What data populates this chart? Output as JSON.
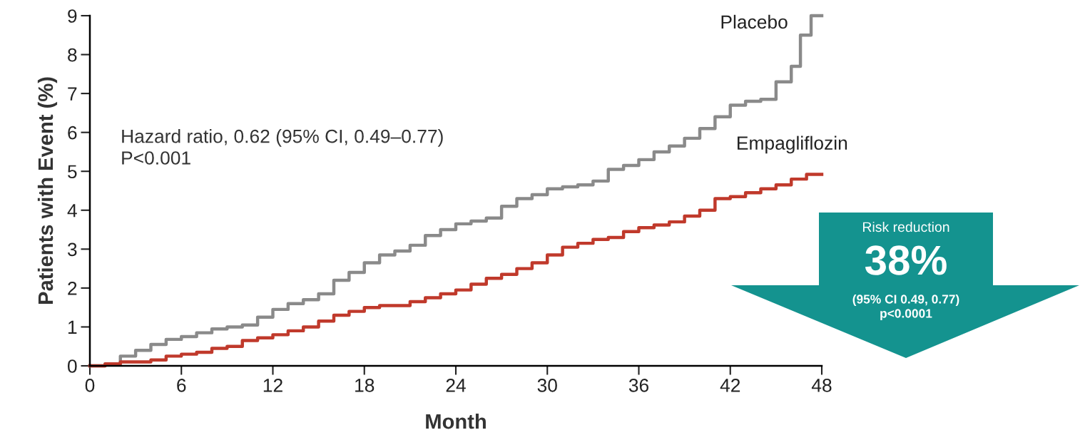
{
  "chart_data": {
    "type": "step",
    "xlabel": "Month",
    "ylabel": "Patients with Event (%)",
    "xlim": [
      0,
      48
    ],
    "ylim": [
      0,
      9
    ],
    "xticks": [
      0,
      6,
      12,
      18,
      24,
      30,
      36,
      42,
      48
    ],
    "yticks": [
      0,
      1,
      2,
      3,
      4,
      5,
      6,
      7,
      8,
      9
    ],
    "grid": false,
    "legend": false,
    "marker": "none",
    "line_style": "solid",
    "series": [
      {
        "name": "Placebo",
        "color": "#8a8a8a",
        "x": [
          0,
          1,
          2,
          3,
          4,
          5,
          6,
          7,
          8,
          9,
          10,
          11,
          12,
          13,
          14,
          15,
          16,
          17,
          18,
          19,
          20,
          21,
          22,
          23,
          24,
          25,
          26,
          27,
          28,
          29,
          30,
          31,
          32,
          33,
          34,
          35,
          36,
          37,
          38,
          39,
          40,
          41,
          42,
          43,
          44,
          45,
          46,
          46.6,
          47.3,
          48
        ],
        "values": [
          0,
          0.05,
          0.25,
          0.4,
          0.55,
          0.68,
          0.75,
          0.85,
          0.95,
          1.0,
          1.05,
          1.25,
          1.45,
          1.6,
          1.7,
          1.85,
          2.2,
          2.4,
          2.65,
          2.85,
          2.95,
          3.1,
          3.35,
          3.5,
          3.65,
          3.72,
          3.8,
          4.1,
          4.3,
          4.4,
          4.55,
          4.6,
          4.65,
          4.75,
          5.05,
          5.15,
          5.3,
          5.5,
          5.65,
          5.85,
          6.1,
          6.4,
          6.7,
          6.8,
          6.85,
          7.3,
          7.7,
          8.5,
          9.0,
          9.0
        ]
      },
      {
        "name": "Empagliflozin",
        "color": "#c0392b",
        "x": [
          0,
          1,
          2,
          4,
          5,
          6,
          7,
          8,
          9,
          10,
          11,
          12,
          13,
          14,
          15,
          16,
          17,
          18,
          19,
          20,
          21,
          22,
          23,
          24,
          25,
          26,
          27,
          28,
          29,
          30,
          31,
          32,
          33,
          34,
          35,
          36,
          37,
          38,
          39,
          40,
          41,
          42,
          43,
          44,
          45,
          46,
          47,
          48
        ],
        "values": [
          0,
          0.05,
          0.1,
          0.15,
          0.25,
          0.3,
          0.35,
          0.45,
          0.5,
          0.65,
          0.72,
          0.8,
          0.9,
          1.0,
          1.15,
          1.3,
          1.4,
          1.5,
          1.55,
          1.55,
          1.65,
          1.75,
          1.85,
          1.95,
          2.1,
          2.25,
          2.35,
          2.5,
          2.65,
          2.85,
          3.05,
          3.15,
          3.25,
          3.3,
          3.45,
          3.55,
          3.62,
          3.7,
          3.85,
          4.0,
          4.3,
          4.35,
          4.45,
          4.55,
          4.65,
          4.8,
          4.92,
          4.92
        ]
      }
    ],
    "annotations": [
      "Hazard ratio, 0.62 (95% CI, 0.49–0.77)\nP<0.001",
      "Risk reduction",
      "38%",
      "(95% CI 0.49, 0.77)",
      "p<0.0001"
    ]
  }
}
